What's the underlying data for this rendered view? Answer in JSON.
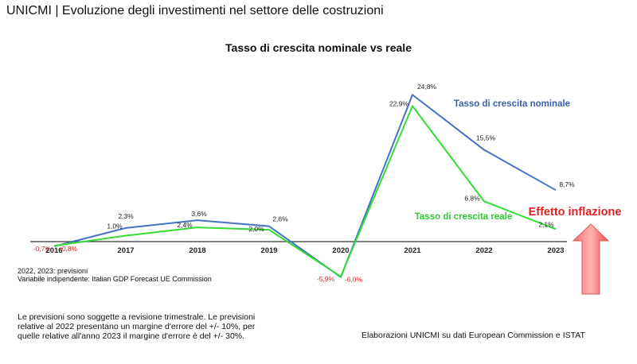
{
  "header": {
    "title": "UNICMI | Evoluzione degli investimenti nel settore delle costruzioni"
  },
  "chart_data": {
    "type": "line",
    "title": "Tasso di crescita nominale vs reale",
    "categories": [
      "2016",
      "2017",
      "2018",
      "2019",
      "2020",
      "2021",
      "2022",
      "2023"
    ],
    "series": [
      {
        "name": "Tasso di crescita nominale",
        "color": "#4472c4",
        "values": [
          -0.8,
          2.3,
          3.6,
          2.6,
          -6.0,
          24.8,
          15.5,
          8.7
        ],
        "labels": [
          "-0,8%",
          "2,3%",
          "3,6%",
          "2,6%",
          "-6,0%",
          "24,8%",
          "15,5%",
          "8,7%"
        ]
      },
      {
        "name": "Tasso di crescita reale",
        "color": "#33dd33",
        "values": [
          -0.7,
          1.0,
          2.4,
          2.0,
          -5.9,
          22.9,
          6.8,
          2.1
        ],
        "labels": [
          "-0,7%",
          "1,0%",
          "2,4%",
          "2,0%",
          "-5,9%",
          "22,9%",
          "6,8%",
          "2,1%"
        ]
      }
    ],
    "negative_label_color": "#e02020",
    "annotation": {
      "text": "Effetto inflazione",
      "color": "#e02020"
    },
    "grid": false,
    "legend": "inline labels"
  },
  "notes": {
    "line1": "2022, 2023: previsioni",
    "line2": "Variabile indipendente: Italian GDP Forecast UE Commission"
  },
  "disclaimer": "Le previsioni sono soggette a revisione trimestrale. Le previsioni relative al 2022 presentano un margine d'errore del +/- 10%, per quelle relative all'anno 2023 il margine d'errore è del +/- 30%.",
  "source": "Elaborazioni UNICMI su dati European Commission e ISTAT"
}
